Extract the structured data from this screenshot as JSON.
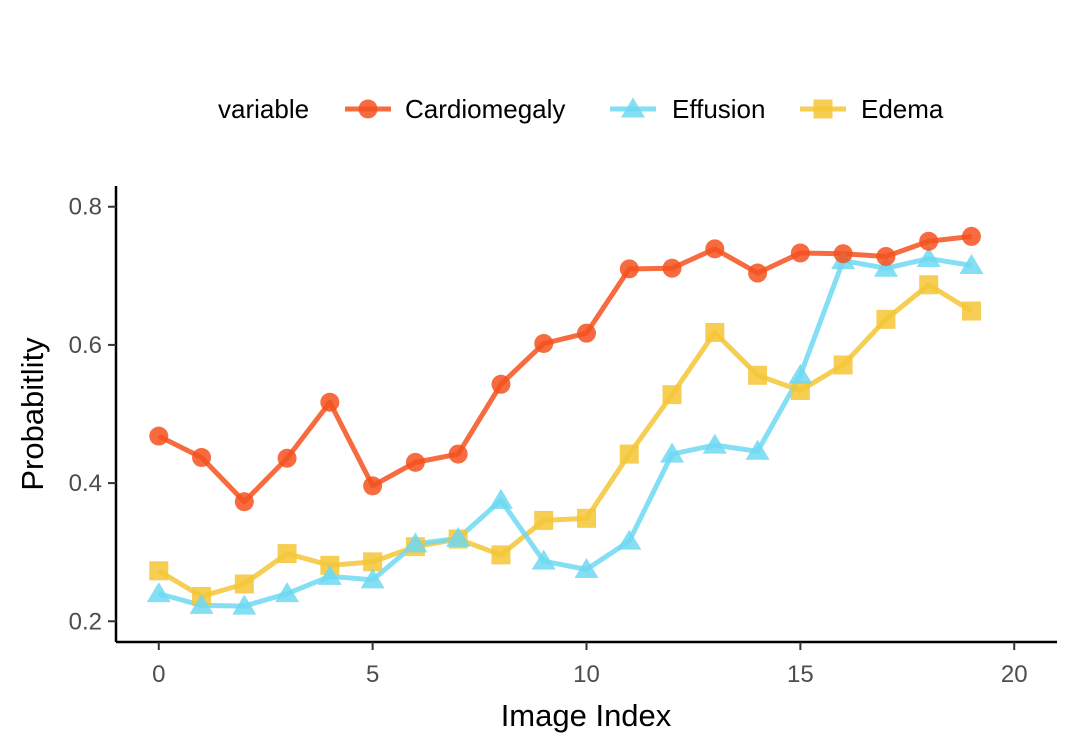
{
  "chart_data": {
    "type": "line",
    "xlabel": "Image Index",
    "ylabel": "Probabitlity",
    "xlim": [
      -1,
      21
    ],
    "ylim": [
      0.17,
      0.83
    ],
    "xticks": [
      0,
      5,
      10,
      15,
      20
    ],
    "yticks": [
      0.2,
      0.4,
      0.6,
      0.8
    ],
    "xtick_labels": [
      "0",
      "5",
      "10",
      "15",
      "20"
    ],
    "ytick_labels": [
      "0.2",
      "0.4",
      "0.6",
      "0.8"
    ],
    "grid": false,
    "legend": {
      "position": "top",
      "title": "variable"
    },
    "x": [
      0,
      1,
      2,
      3,
      4,
      5,
      6,
      7,
      8,
      9,
      10,
      11,
      12,
      13,
      14,
      15,
      16,
      17,
      18,
      19
    ],
    "series": [
      {
        "name": "Cardiomegaly",
        "marker": "circle",
        "color": "#f4511e",
        "values": [
          0.468,
          0.437,
          0.373,
          0.436,
          0.517,
          0.396,
          0.43,
          0.442,
          0.543,
          0.602,
          0.617,
          0.71,
          0.711,
          0.739,
          0.704,
          0.733,
          0.732,
          0.728,
          0.75,
          0.757
        ]
      },
      {
        "name": "Effusion",
        "marker": "triangle",
        "color": "#6fd8f2",
        "values": [
          0.24,
          0.223,
          0.222,
          0.24,
          0.265,
          0.26,
          0.312,
          0.32,
          0.375,
          0.287,
          0.275,
          0.316,
          0.442,
          0.455,
          0.446,
          0.556,
          0.722,
          0.711,
          0.725,
          0.715
        ]
      },
      {
        "name": "Edema",
        "marker": "square",
        "color": "#f5c536",
        "values": [
          0.273,
          0.236,
          0.254,
          0.298,
          0.281,
          0.286,
          0.308,
          0.319,
          0.296,
          0.346,
          0.349,
          0.442,
          0.528,
          0.618,
          0.556,
          0.534,
          0.571,
          0.637,
          0.687,
          0.649
        ]
      }
    ]
  }
}
